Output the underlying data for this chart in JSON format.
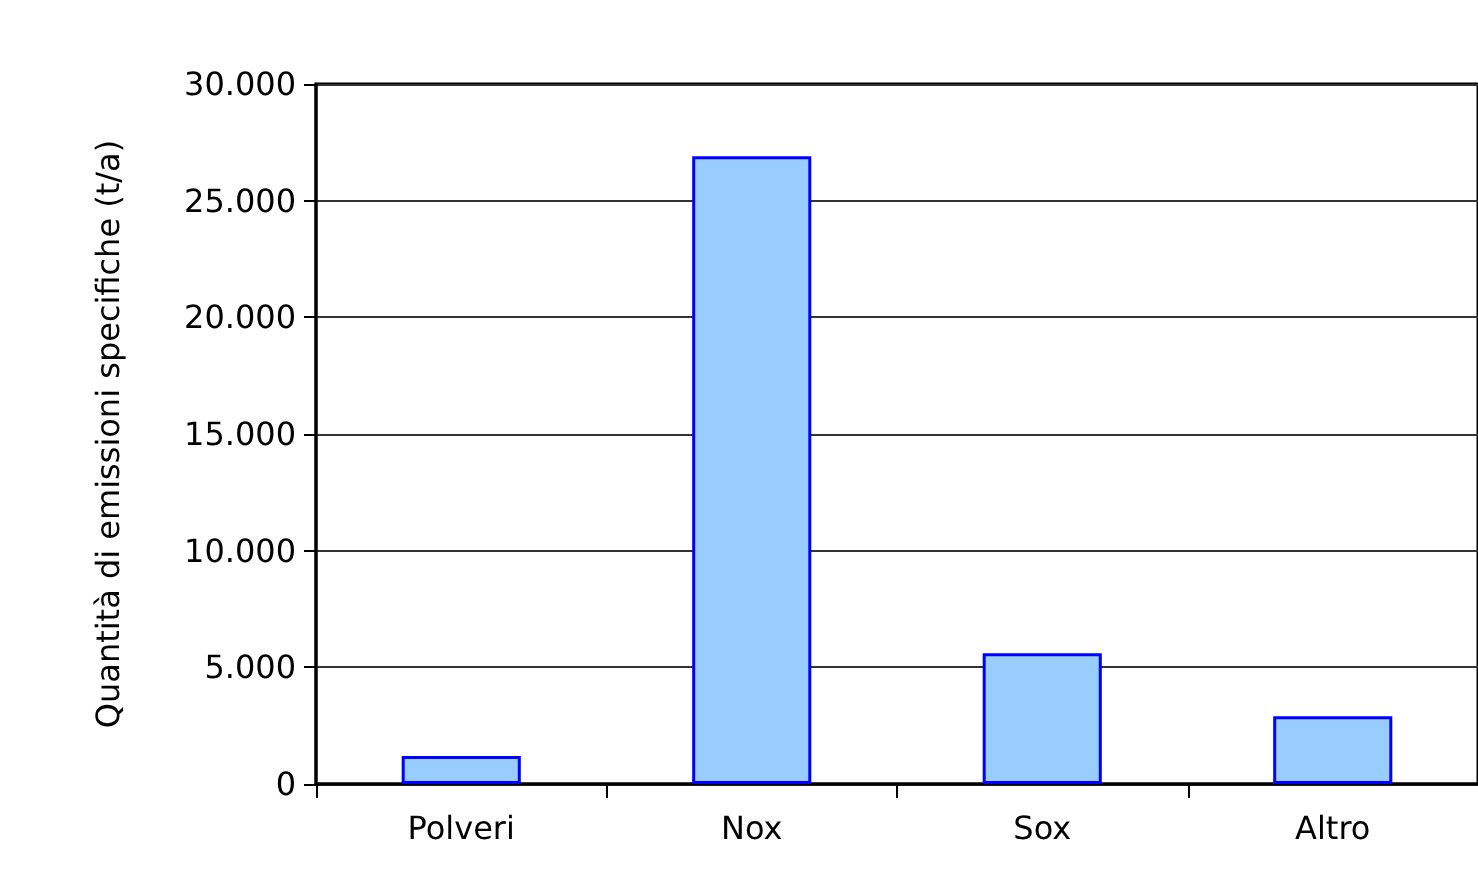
{
  "chart_data": {
    "type": "bar",
    "ylabel": "Quantità di emissioni specifiche (t/a)",
    "categories": [
      "Polveri",
      "Nox",
      "Sox",
      "Altro"
    ],
    "values": [
      1200,
      26900,
      5600,
      2900
    ],
    "color": "#99ccff",
    "ylim": [
      0,
      30000
    ],
    "yticks": [
      0,
      {
        "value": 5000,
        "label": "5.000"
      },
      {
        "value": 10000,
        "label": "10.000"
      },
      {
        "value": 15000,
        "label": "15.000"
      },
      {
        "value": 20000,
        "label": "20.000"
      },
      {
        "value": 25000,
        "label": "25.000"
      },
      {
        "value": 30000,
        "label": "30.000"
      }
    ],
    "grid": "y"
  }
}
